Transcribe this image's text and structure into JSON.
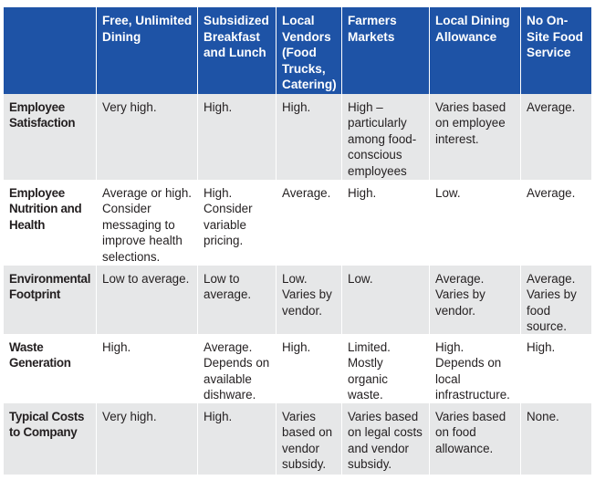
{
  "table": {
    "headers": [
      "",
      "Free, Unlimited Dining",
      "Subsidized Breakfast and Lunch",
      "Local Vendors (Food Trucks, Catering)",
      "Farmers Markets",
      "Local Dining Allowance",
      "No On-Site Food Service"
    ],
    "rows": [
      {
        "label": "Employee Satisfaction",
        "cells": [
          "Very high.",
          "High.",
          "High.",
          "High – particularly among food-conscious employees",
          "Varies based on employee interest.",
          "Average."
        ]
      },
      {
        "label": "Employee Nutrition and Health",
        "cells": [
          "Average or high. Consider messaging to improve health selections.",
          "High. Consider variable pricing.",
          "Average.",
          "High.",
          "Low.",
          "Average."
        ]
      },
      {
        "label": "Environmental Footprint",
        "cells": [
          "Low to average.",
          "Low to average.",
          "Low. Varies by vendor.",
          "Low.",
          "Average. Varies by vendor.",
          "Average. Varies by food source."
        ]
      },
      {
        "label": "Waste Generation",
        "cells": [
          "High.",
          "Average. Depends on available dishware.",
          "High.",
          "Limited. Mostly organic waste.",
          "High. Depends on local infrastructure.",
          "High."
        ]
      },
      {
        "label": "Typical Costs to Company",
        "cells": [
          "Very high.",
          "High.",
          "Varies based on vendor subsidy.",
          "Varies based on legal costs and vendor subsidy.",
          "Varies based on food allowance.",
          "None."
        ]
      }
    ]
  },
  "colors": {
    "header_bg": "#1e53a6",
    "header_text": "#ffffff",
    "band_gray": "#e6e7e8",
    "band_white": "#ffffff",
    "text": "#231f20"
  }
}
